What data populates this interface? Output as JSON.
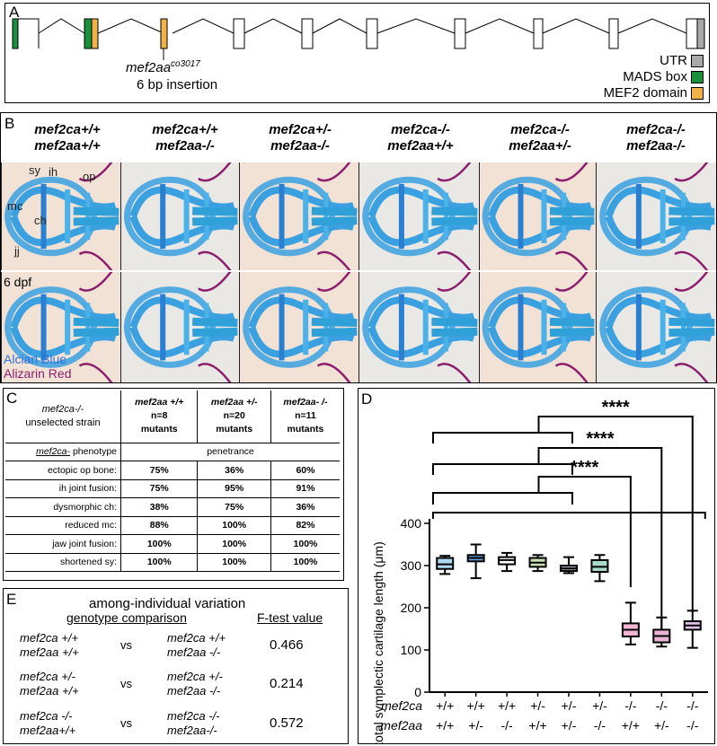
{
  "panel_a": {
    "label": "A",
    "allele": "mef2aa",
    "allele_sup": "co3017",
    "insertion": "6 bp insertion",
    "legend": [
      {
        "label": "UTR",
        "color": "#a9a9a9"
      },
      {
        "label": "MADS box",
        "color": "#1a8f3c"
      },
      {
        "label": "MEF2 domain",
        "color": "#f0b04a"
      }
    ]
  },
  "panel_b": {
    "label": "B",
    "columns": [
      {
        "line1": "mef2ca+/+",
        "line2": "mef2aa+/+"
      },
      {
        "line1": "mef2ca+/+",
        "line2": "mef2aa-/-"
      },
      {
        "line1": "mef2ca+/-",
        "line2": "mef2aa-/-"
      },
      {
        "line1": "mef2ca-/-",
        "line2": "mef2aa+/+"
      },
      {
        "line1": "mef2ca-/-",
        "line2": "mef2aa+/-"
      },
      {
        "line1": "mef2ca-/-",
        "line2": "mef2aa-/-"
      }
    ],
    "annotations": {
      "mc": "mc",
      "sy": "sy",
      "ih": "ih",
      "op": "op",
      "ch": "ch",
      "jj": "jj"
    },
    "age": "6 dpf",
    "stain1": "Alcian Blue",
    "stain2": "Alizarin Red",
    "stain1_color": "#2e6fd8",
    "stain2_color": "#8b1f6e"
  },
  "panel_c": {
    "label": "C",
    "header_title1": "mef2ca-/-",
    "header_title2": "unselected strain",
    "col_headers": [
      {
        "g": "mef2aa +/+",
        "n": "n=8",
        "m": "mutants"
      },
      {
        "g": "mef2aa +/-",
        "n": "n=20",
        "m": "mutants"
      },
      {
        "g": "mef2aa- /-",
        "n": "n=11",
        "m": "mutants"
      }
    ],
    "phenotype_label": "mef2ca-",
    "phenotype_rest": " phenotype",
    "penetrance_label": "penetrance",
    "rows": [
      {
        "label": "ectopic op bone:",
        "vals": [
          "75%",
          "36%",
          "60%"
        ]
      },
      {
        "label": "ih joint fusion:",
        "vals": [
          "75%",
          "95%",
          "91%"
        ]
      },
      {
        "label": "dysmorphic ch:",
        "vals": [
          "38%",
          "75%",
          "36%"
        ]
      },
      {
        "label": "reduced mc:",
        "vals": [
          "88%",
          "100%",
          "82%"
        ]
      },
      {
        "label": "jaw joint fusion:",
        "vals": [
          "100%",
          "100%",
          "100%"
        ]
      },
      {
        "label": "shortened sy:",
        "vals": [
          "100%",
          "100%",
          "100%"
        ]
      }
    ]
  },
  "panel_e": {
    "label": "E",
    "title": "among-individual variation",
    "col1": "genotype comparison",
    "col2": "F-test value",
    "vs": "vs",
    "rows": [
      {
        "a1": "mef2ca +/+",
        "a2": "mef2aa +/+",
        "b1": "mef2ca +/+",
        "b2": "mef2aa -/-",
        "f": "0.466"
      },
      {
        "a1": "mef2ca +/-",
        "a2": "mef2aa +/+",
        "b1": "mef2ca +/-",
        "b2": "mef2aa -/-",
        "f": "0.214"
      },
      {
        "a1": "mef2ca -/-",
        "a2": "mef2aa+/+",
        "b1": "mef2ca -/-",
        "b2": "mef2aa-/-",
        "f": "0.572"
      }
    ]
  },
  "panel_d": {
    "label": "D"
  },
  "chart_data": {
    "type": "box",
    "ylabel": "total symplectic cartilage length (μm)",
    "ylim": [
      0,
      400
    ],
    "yticks": [
      0,
      100,
      200,
      300,
      400
    ],
    "row_labels": [
      "mef2ca",
      "mef2aa"
    ],
    "significance": [
      "****",
      "****",
      "****"
    ],
    "categories": [
      {
        "mef2ca": "+/+",
        "mef2aa": "+/+",
        "color": "#a8d8ee",
        "min": 280,
        "q1": 292,
        "median": 303,
        "q3": 318,
        "max": 323
      },
      {
        "mef2ca": "+/+",
        "mef2aa": "+/-",
        "color": "#6a9ad6",
        "min": 270,
        "q1": 310,
        "median": 318,
        "q3": 325,
        "max": 350
      },
      {
        "mef2ca": "+/+",
        "mef2aa": "-/-",
        "color": "#ffffff",
        "min": 287,
        "q1": 303,
        "median": 313,
        "q3": 320,
        "max": 330
      },
      {
        "mef2ca": "+/-",
        "mef2aa": "+/+",
        "color": "#c9e3b0",
        "min": 287,
        "q1": 297,
        "median": 307,
        "q3": 318,
        "max": 325
      },
      {
        "mef2ca": "+/-",
        "mef2aa": "+/-",
        "color": "#9aa4b0",
        "min": 282,
        "q1": 287,
        "median": 293,
        "q3": 300,
        "max": 320
      },
      {
        "mef2ca": "+/-",
        "mef2aa": "-/-",
        "color": "#a8dcc6",
        "min": 263,
        "q1": 285,
        "median": 297,
        "q3": 313,
        "max": 325
      },
      {
        "mef2ca": "-/-",
        "mef2aa": "+/+",
        "color": "#f3b6d2",
        "min": 113,
        "q1": 132,
        "median": 148,
        "q3": 163,
        "max": 212
      },
      {
        "mef2ca": "-/-",
        "mef2aa": "+/-",
        "color": "#e7b6d5",
        "min": 108,
        "q1": 118,
        "median": 133,
        "q3": 148,
        "max": 177
      },
      {
        "mef2ca": "-/-",
        "mef2aa": "-/-",
        "color": "#e0c2ea",
        "min": 105,
        "q1": 148,
        "median": 158,
        "q3": 168,
        "max": 193
      }
    ]
  }
}
